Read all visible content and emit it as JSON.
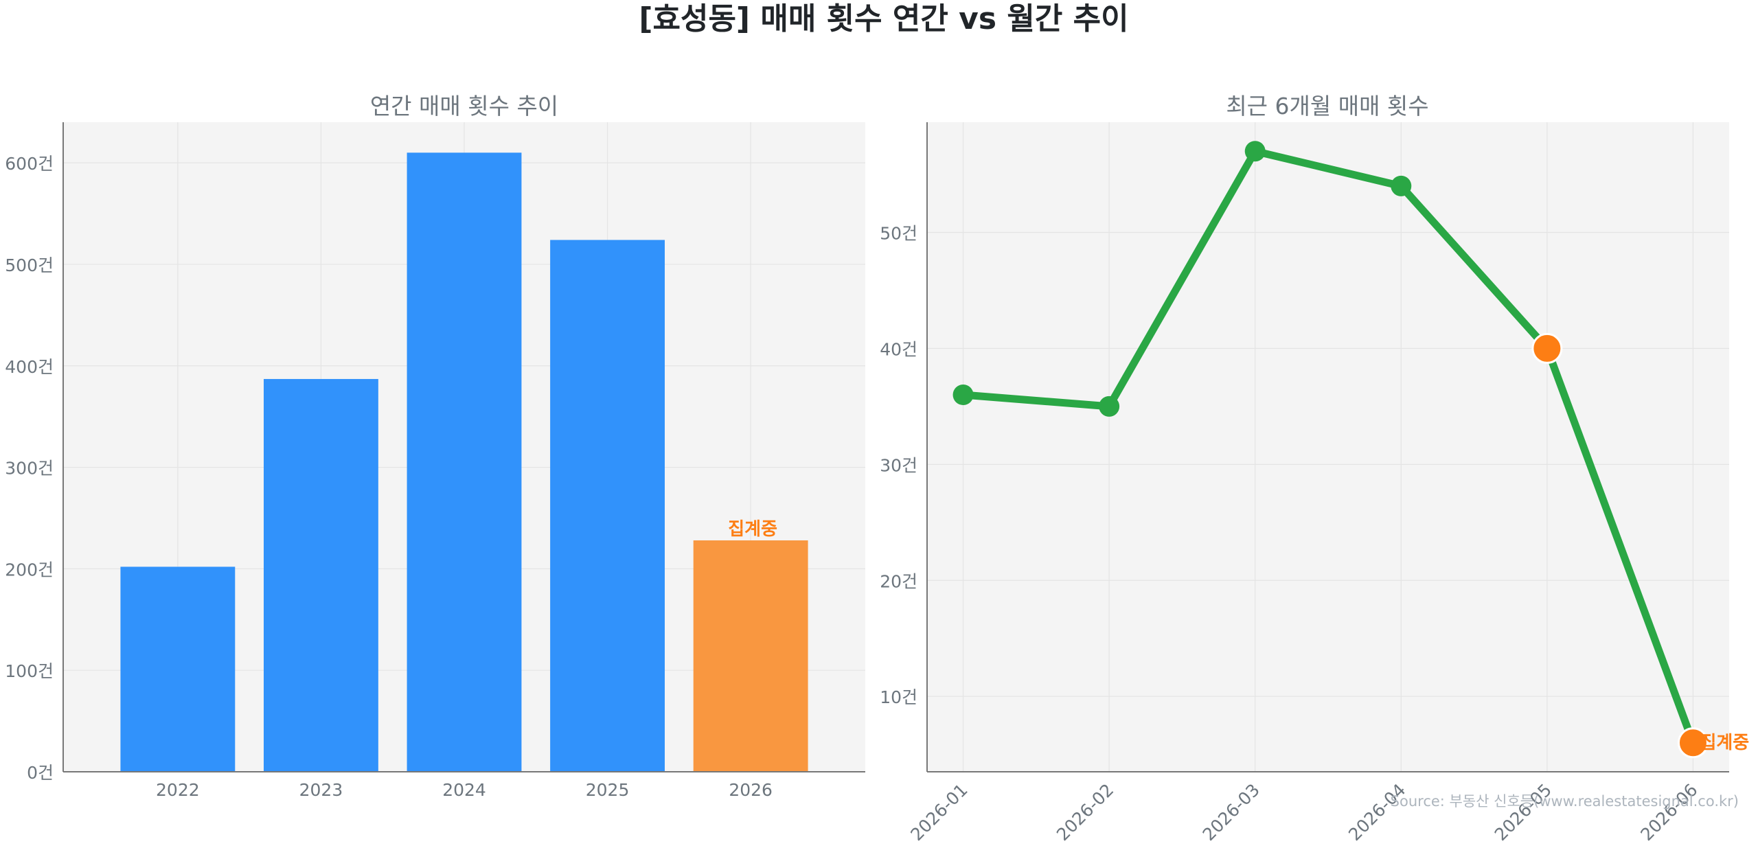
{
  "page_title": "[효성동] 매매 횟수 연간 vs 월간 추이",
  "source_note": "Source: 부동산 신호등(www.realestatesignal.co.kr)",
  "colors": {
    "bar_blue": "#3192fb",
    "bar_orange": "#f99740",
    "line_green": "#2aa745",
    "highlight_orange": "#fd7e14",
    "plot_bg": "#f4f4f4",
    "grid": "#e4e4e4",
    "axis": "#777777",
    "tick_text": "#6c757d",
    "title_text": "#212529"
  },
  "chart_data": [
    {
      "type": "bar",
      "title": "연간 매매 횟수 추이",
      "xlabel": "",
      "ylabel": "",
      "categories": [
        "2022",
        "2023",
        "2024",
        "2025",
        "2026"
      ],
      "values": [
        202,
        387,
        610,
        524,
        228
      ],
      "highlight_index": 4,
      "annotation": "집계중",
      "ylim": [
        0,
        640
      ],
      "yticks": [
        0,
        100,
        200,
        300,
        400,
        500,
        600
      ],
      "ytick_suffix": "건",
      "grid": true
    },
    {
      "type": "line",
      "title": "최근 6개월 매매 횟수",
      "xlabel": "",
      "ylabel": "",
      "x": [
        "2026-01",
        "2026-02",
        "2026-03",
        "2026-04",
        "2026-05",
        "2026-06"
      ],
      "values": [
        36,
        35,
        57,
        54,
        40,
        6
      ],
      "highlight_indices": [
        4,
        5
      ],
      "annotation": "집계중",
      "ylim": [
        3.5,
        59.5
      ],
      "yticks": [
        10,
        20,
        30,
        40,
        50
      ],
      "ytick_suffix": "건",
      "grid": true
    }
  ]
}
